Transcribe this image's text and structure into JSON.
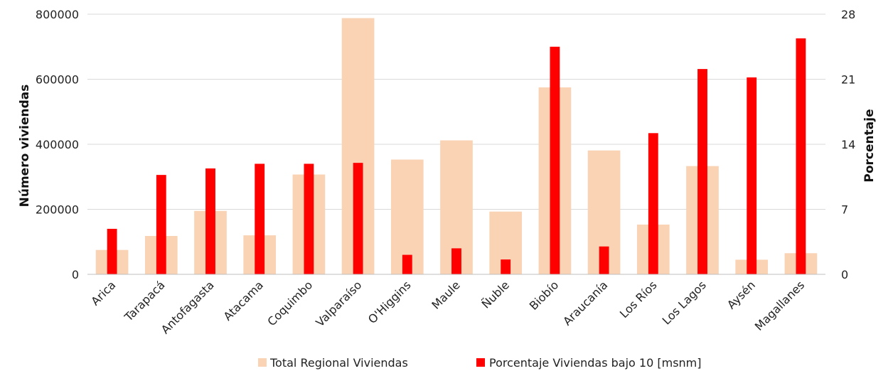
{
  "chart_data": {
    "type": "bar",
    "categories": [
      "Arica",
      "Tarapacá",
      "Antofagasta",
      "Atacama",
      "Coquimbo",
      "Valparaíso",
      "O'Higgins",
      "Maule",
      "Ñuble",
      "Biobío",
      "Araucanía",
      "Los Ríos",
      "Los Lagos",
      "Aysén",
      "Magallanes"
    ],
    "series": [
      {
        "name": "Total Regional Viviendas",
        "axis": "left",
        "color": "#f9d3b3",
        "values": [
          75000,
          118000,
          195000,
          120000,
          307000,
          788000,
          353000,
          412000,
          193000,
          575000,
          381000,
          153000,
          333000,
          45000,
          65000
        ]
      },
      {
        "name": "Porcentaje Viviendas bajo 10 [msnm]",
        "axis": "right",
        "color": "#ff0000",
        "values": [
          4.9,
          10.7,
          11.4,
          11.9,
          11.9,
          12.0,
          2.1,
          2.8,
          1.6,
          24.5,
          3.0,
          15.2,
          22.1,
          21.2,
          25.4
        ]
      }
    ],
    "ylabel": "Número viviendas",
    "y2label": "Porcentaje",
    "ylim": [
      0,
      800000
    ],
    "y2lim": [
      0,
      28
    ],
    "yticks": [
      "0",
      "200000",
      "400000",
      "600000",
      "800000"
    ],
    "y2ticks": [
      "0",
      "7",
      "14",
      "21",
      "28"
    ],
    "ytick_values": [
      0,
      200000,
      400000,
      600000,
      800000
    ],
    "y2tick_values": [
      0,
      7,
      14,
      21,
      28
    ],
    "legend_position": "bottom",
    "grid": true
  }
}
